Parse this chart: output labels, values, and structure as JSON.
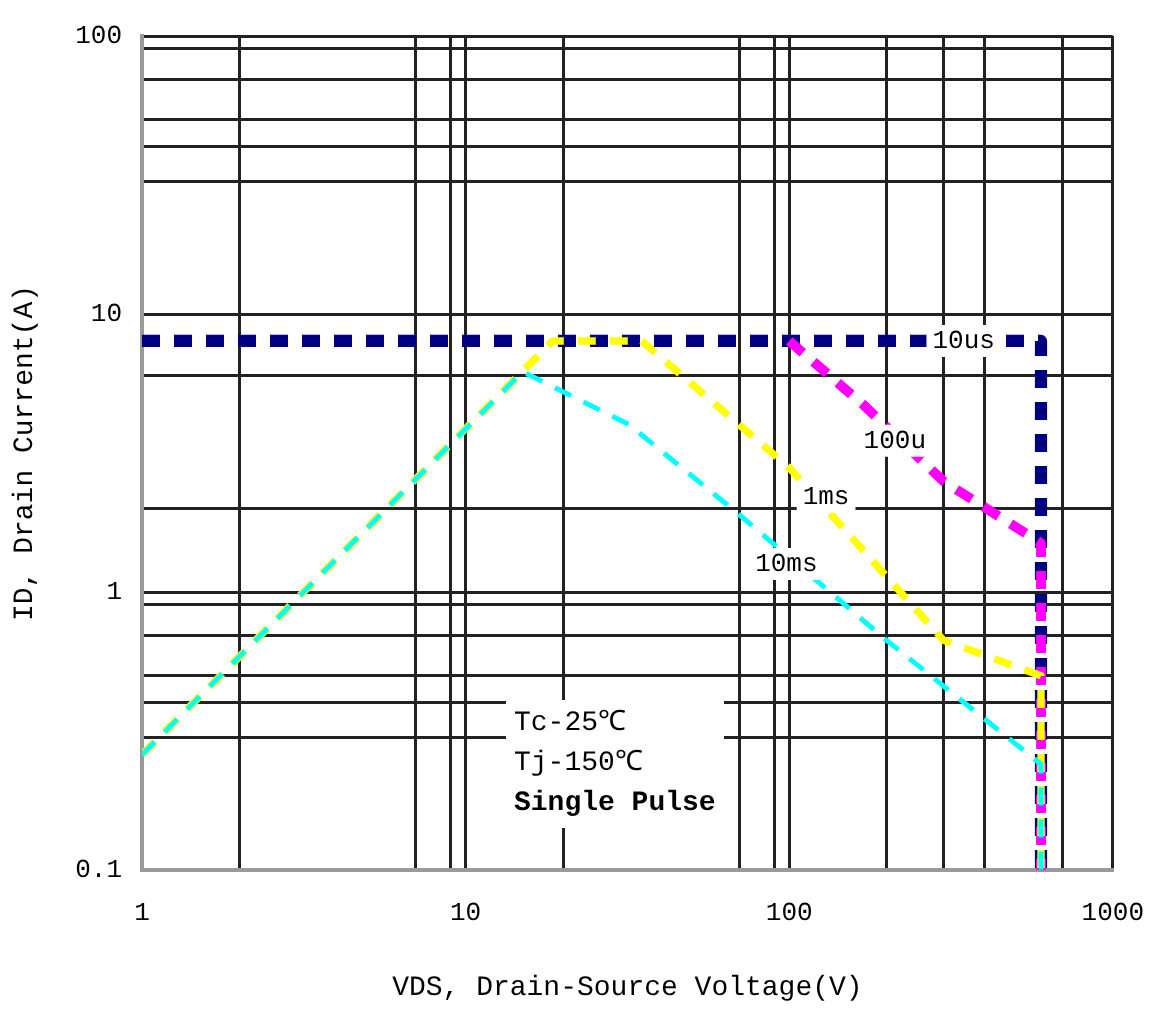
{
  "chart_data": {
    "type": "line",
    "xlabel": "VDS, Drain-Source Voltage(V)",
    "ylabel": "ID, Drain Current(A)",
    "log": "xy",
    "grid": true,
    "legend": false,
    "marker": "none",
    "line_style": "dashed",
    "xlim": [
      1,
      1000
    ],
    "ylim": [
      0.1,
      100
    ],
    "xticks": [
      1,
      {
        "value": 2,
        "label": null
      },
      {
        "value": 7,
        "label": null
      },
      {
        "value": 9,
        "label": null
      },
      10,
      {
        "value": 20,
        "label": null
      },
      {
        "value": 70,
        "label": null
      },
      {
        "value": 90,
        "label": null
      },
      100,
      {
        "value": 200,
        "label": null
      },
      {
        "value": 300,
        "label": null
      },
      {
        "value": 400,
        "label": null
      },
      {
        "value": 700,
        "label": null
      },
      1000
    ],
    "yticks": [
      0.1,
      {
        "value": 0.3,
        "label": null
      },
      {
        "value": 0.4,
        "label": null
      },
      {
        "value": 0.5,
        "label": null
      },
      {
        "value": 0.7,
        "label": null
      },
      {
        "value": 0.9,
        "label": null
      },
      1,
      {
        "value": 2,
        "label": null
      },
      {
        "value": 6,
        "label": null
      },
      10,
      {
        "value": 30,
        "label": null
      },
      {
        "value": 40,
        "label": null
      },
      {
        "value": 50,
        "label": null
      },
      {
        "value": 70,
        "label": null
      },
      {
        "value": 90,
        "label": null
      },
      100
    ],
    "series": [
      {
        "color": "#00ffff",
        "x": [
          1,
          15,
          32,
          70,
          200,
          600,
          600
        ],
        "values": [
          0.26,
          6.2,
          4,
          1.9,
          0.67,
          0.24,
          0.1
        ]
      },
      {
        "color": "#ffff00",
        "x": [
          1,
          18.6,
          35,
          100,
          300,
          600,
          600
        ],
        "values": [
          0.26,
          8,
          8,
          2.8,
          0.67,
          0.5,
          0.1
        ]
      },
      {
        "color": "#ff00ff",
        "x": [
          100,
          170,
          300,
          600,
          600
        ],
        "values": [
          8,
          4.7,
          2.5,
          1.5,
          0.1
        ]
      },
      {
        "color": "#000080",
        "x": [
          1,
          600,
          600
        ],
        "values": [
          8,
          8,
          0.1
        ]
      }
    ],
    "annotations": [
      {
        "text": "10us",
        "x": 346,
        "y": 8
      },
      {
        "text": "100u",
        "x": 212,
        "y": 3.5
      },
      {
        "text": "1ms",
        "x": 130,
        "y": 2.2
      },
      {
        "text": "10ms",
        "x": 98,
        "y": 1.26
      },
      "Tc-25℃",
      "Tj-150℃",
      "Single Pulse"
    ]
  }
}
